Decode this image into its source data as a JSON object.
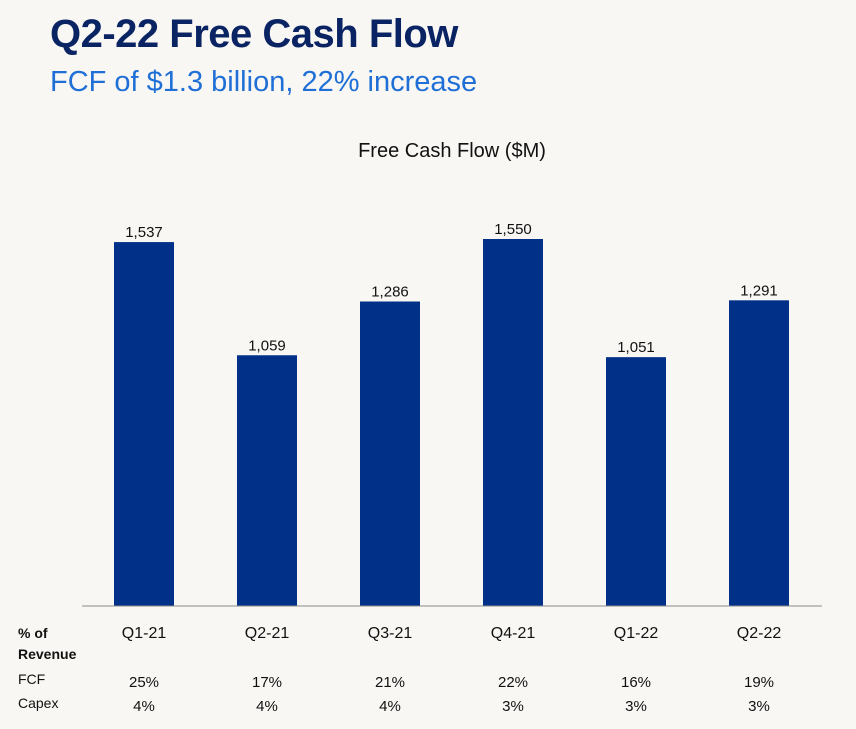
{
  "header": {
    "title": "Q2-22 Free Cash Flow",
    "subtitle": "FCF of $1.3 billion, 22% increase"
  },
  "colors": {
    "bar": "#003087",
    "title": "#0a2463",
    "subtitle": "#1f6fd6",
    "axis": "#888888"
  },
  "chart_data": {
    "type": "bar",
    "title": "Free Cash Flow ($M)",
    "xlabel": "",
    "ylabel": "",
    "categories": [
      "Q1-21",
      "Q2-21",
      "Q3-21",
      "Q4-21",
      "Q1-22",
      "Q2-22"
    ],
    "values": [
      1537,
      1059,
      1286,
      1550,
      1051,
      1291
    ],
    "value_labels": [
      "1,537",
      "1,059",
      "1,286",
      "1,550",
      "1,051",
      "1,291"
    ],
    "ylim": [
      0,
      1550
    ],
    "grid": false
  },
  "table": {
    "header_line1": "% of",
    "header_line2": "Revenue",
    "rows": [
      {
        "label": "FCF",
        "values": [
          "25%",
          "17%",
          "21%",
          "22%",
          "16%",
          "19%"
        ]
      },
      {
        "label": "Capex",
        "values": [
          "4%",
          "4%",
          "4%",
          "3%",
          "3%",
          "3%"
        ]
      }
    ]
  }
}
